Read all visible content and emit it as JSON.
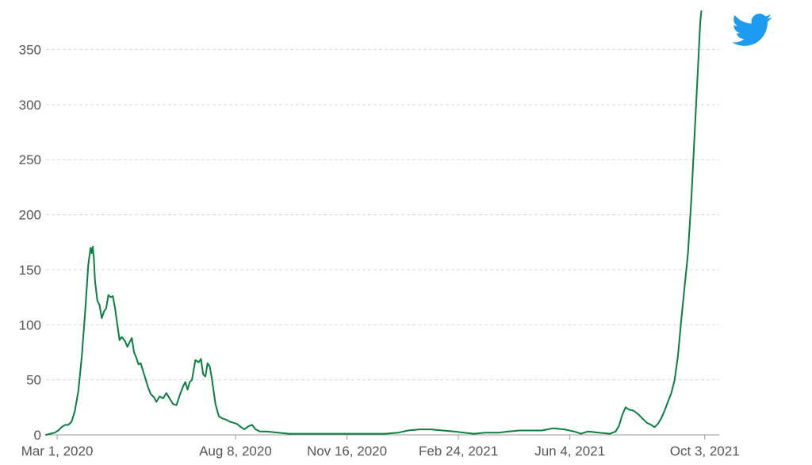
{
  "colors": {
    "line": "#0a7f3f",
    "logo": "#1d9bf0"
  },
  "logo": {
    "icon": "twitter-bird-icon"
  },
  "chart_data": {
    "type": "line",
    "title": "",
    "xlabel": "",
    "ylabel": "",
    "x_axis": {
      "type": "date",
      "range": [
        "2020-02-20",
        "2021-10-16"
      ]
    },
    "ylim": [
      0,
      385
    ],
    "yticks": [
      0,
      50,
      100,
      150,
      200,
      250,
      300,
      350
    ],
    "xticks": [
      {
        "date": "2020-03-01",
        "label": "Mar 1, 2020"
      },
      {
        "date": "2020-08-08",
        "label": "Aug 8, 2020"
      },
      {
        "date": "2020-11-16",
        "label": "Nov 16, 2020"
      },
      {
        "date": "2021-02-24",
        "label": "Feb 24, 2021"
      },
      {
        "date": "2021-06-04",
        "label": "Jun 4, 2021"
      },
      {
        "date": "2021-10-03",
        "label": "Oct 3, 2021"
      }
    ],
    "grid": true,
    "legend": "none",
    "series": [
      {
        "points": [
          [
            "2020-02-20",
            0
          ],
          [
            "2020-02-24",
            1
          ],
          [
            "2020-02-28",
            2
          ],
          [
            "2020-03-02",
            4
          ],
          [
            "2020-03-05",
            7
          ],
          [
            "2020-03-08",
            9
          ],
          [
            "2020-03-11",
            9
          ],
          [
            "2020-03-14",
            12
          ],
          [
            "2020-03-17",
            22
          ],
          [
            "2020-03-20",
            40
          ],
          [
            "2020-03-23",
            70
          ],
          [
            "2020-03-26",
            110
          ],
          [
            "2020-03-29",
            155
          ],
          [
            "2020-03-31",
            170
          ],
          [
            "2020-04-01",
            165
          ],
          [
            "2020-04-02",
            171
          ],
          [
            "2020-04-03",
            160
          ],
          [
            "2020-04-04",
            140
          ],
          [
            "2020-04-06",
            122
          ],
          [
            "2020-04-08",
            118
          ],
          [
            "2020-04-10",
            106
          ],
          [
            "2020-04-12",
            112
          ],
          [
            "2020-04-14",
            115
          ],
          [
            "2020-04-16",
            127
          ],
          [
            "2020-04-18",
            125
          ],
          [
            "2020-04-20",
            126
          ],
          [
            "2020-04-22",
            115
          ],
          [
            "2020-04-24",
            100
          ],
          [
            "2020-04-26",
            86
          ],
          [
            "2020-04-28",
            89
          ],
          [
            "2020-05-01",
            85
          ],
          [
            "2020-05-03",
            80
          ],
          [
            "2020-05-05",
            84
          ],
          [
            "2020-05-07",
            88
          ],
          [
            "2020-05-09",
            75
          ],
          [
            "2020-05-11",
            70
          ],
          [
            "2020-05-13",
            64
          ],
          [
            "2020-05-15",
            65
          ],
          [
            "2020-05-18",
            55
          ],
          [
            "2020-05-21",
            45
          ],
          [
            "2020-05-24",
            37
          ],
          [
            "2020-05-27",
            34
          ],
          [
            "2020-05-29",
            30
          ],
          [
            "2020-06-01",
            35
          ],
          [
            "2020-06-04",
            33
          ],
          [
            "2020-06-07",
            38
          ],
          [
            "2020-06-10",
            33
          ],
          [
            "2020-06-13",
            28
          ],
          [
            "2020-06-16",
            27
          ],
          [
            "2020-06-19",
            36
          ],
          [
            "2020-06-22",
            44
          ],
          [
            "2020-06-24",
            48
          ],
          [
            "2020-06-26",
            41
          ],
          [
            "2020-06-28",
            48
          ],
          [
            "2020-06-30",
            50
          ],
          [
            "2020-07-03",
            68
          ],
          [
            "2020-07-06",
            66
          ],
          [
            "2020-07-08",
            69
          ],
          [
            "2020-07-10",
            55
          ],
          [
            "2020-07-12",
            53
          ],
          [
            "2020-07-14",
            65
          ],
          [
            "2020-07-16",
            62
          ],
          [
            "2020-07-18",
            50
          ],
          [
            "2020-07-21",
            28
          ],
          [
            "2020-07-24",
            17
          ],
          [
            "2020-07-27",
            15
          ],
          [
            "2020-07-30",
            14
          ],
          [
            "2020-08-03",
            12
          ],
          [
            "2020-08-06",
            11
          ],
          [
            "2020-08-09",
            10
          ],
          [
            "2020-08-13",
            7
          ],
          [
            "2020-08-16",
            5
          ],
          [
            "2020-08-20",
            8
          ],
          [
            "2020-08-23",
            9
          ],
          [
            "2020-08-26",
            5
          ],
          [
            "2020-08-30",
            3
          ],
          [
            "2020-09-05",
            3
          ],
          [
            "2020-09-15",
            2
          ],
          [
            "2020-09-25",
            1
          ],
          [
            "2020-10-10",
            1
          ],
          [
            "2020-10-25",
            1
          ],
          [
            "2020-11-05",
            1
          ],
          [
            "2020-11-20",
            1
          ],
          [
            "2020-12-05",
            1
          ],
          [
            "2020-12-20",
            1
          ],
          [
            "2021-01-01",
            2
          ],
          [
            "2021-01-10",
            4
          ],
          [
            "2021-01-20",
            5
          ],
          [
            "2021-01-30",
            5
          ],
          [
            "2021-02-10",
            4
          ],
          [
            "2021-02-20",
            3
          ],
          [
            "2021-03-01",
            2
          ],
          [
            "2021-03-10",
            1
          ],
          [
            "2021-03-20",
            2
          ],
          [
            "2021-04-01",
            2
          ],
          [
            "2021-04-10",
            3
          ],
          [
            "2021-04-20",
            4
          ],
          [
            "2021-05-01",
            4
          ],
          [
            "2021-05-10",
            4
          ],
          [
            "2021-05-20",
            6
          ],
          [
            "2021-05-30",
            5
          ],
          [
            "2021-06-08",
            3
          ],
          [
            "2021-06-14",
            1
          ],
          [
            "2021-06-20",
            3
          ],
          [
            "2021-06-30",
            2
          ],
          [
            "2021-07-10",
            1
          ],
          [
            "2021-07-15",
            3
          ],
          [
            "2021-07-18",
            8
          ],
          [
            "2021-07-21",
            18
          ],
          [
            "2021-07-24",
            25
          ],
          [
            "2021-07-27",
            23
          ],
          [
            "2021-07-31",
            22
          ],
          [
            "2021-08-04",
            19
          ],
          [
            "2021-08-08",
            15
          ],
          [
            "2021-08-12",
            11
          ],
          [
            "2021-08-16",
            9
          ],
          [
            "2021-08-19",
            7
          ],
          [
            "2021-08-22",
            10
          ],
          [
            "2021-08-25",
            15
          ],
          [
            "2021-08-28",
            22
          ],
          [
            "2021-08-31",
            30
          ],
          [
            "2021-09-03",
            38
          ],
          [
            "2021-09-06",
            50
          ],
          [
            "2021-09-09",
            72
          ],
          [
            "2021-09-12",
            105
          ],
          [
            "2021-09-15",
            135
          ],
          [
            "2021-09-18",
            165
          ],
          [
            "2021-09-21",
            215
          ],
          [
            "2021-09-24",
            275
          ],
          [
            "2021-09-27",
            335
          ],
          [
            "2021-09-29",
            375
          ],
          [
            "2021-09-30",
            385
          ]
        ]
      }
    ]
  }
}
